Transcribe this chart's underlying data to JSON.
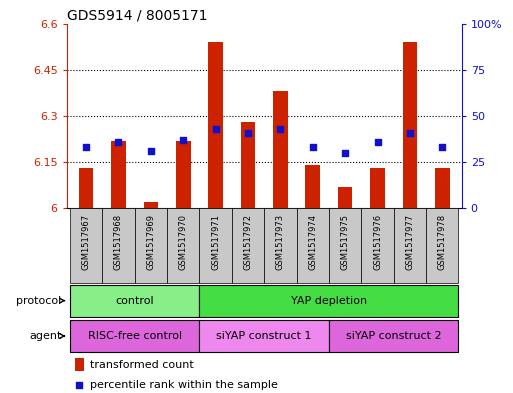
{
  "title": "GDS5914 / 8005171",
  "samples": [
    "GSM1517967",
    "GSM1517968",
    "GSM1517969",
    "GSM1517970",
    "GSM1517971",
    "GSM1517972",
    "GSM1517973",
    "GSM1517974",
    "GSM1517975",
    "GSM1517976",
    "GSM1517977",
    "GSM1517978"
  ],
  "transformed_counts": [
    6.13,
    6.22,
    6.02,
    6.22,
    6.54,
    6.28,
    6.38,
    6.14,
    6.07,
    6.13,
    6.54,
    6.13
  ],
  "percentile_ranks": [
    33,
    36,
    31,
    37,
    43,
    41,
    43,
    33,
    30,
    36,
    41,
    33
  ],
  "ylim_left": [
    6.0,
    6.6
  ],
  "ylim_right": [
    0,
    100
  ],
  "yticks_left": [
    6.0,
    6.15,
    6.3,
    6.45,
    6.6
  ],
  "ytick_labels_left": [
    "6",
    "6.15",
    "6.3",
    "6.45",
    "6.6"
  ],
  "yticks_right": [
    0,
    25,
    50,
    75,
    100
  ],
  "ytick_labels_right": [
    "0",
    "25",
    "50",
    "75",
    "100%"
  ],
  "hlines": [
    6.15,
    6.3,
    6.45
  ],
  "bar_color": "#cc2200",
  "dot_color": "#1111cc",
  "bar_width": 0.45,
  "protocol_groups": [
    {
      "label": "control",
      "start": 0,
      "end": 3,
      "color": "#88ee88"
    },
    {
      "label": "YAP depletion",
      "start": 4,
      "end": 11,
      "color": "#44dd44"
    }
  ],
  "agent_groups": [
    {
      "label": "RISC-free control",
      "start": 0,
      "end": 3,
      "color": "#dd66dd"
    },
    {
      "label": "siYAP construct 1",
      "start": 4,
      "end": 7,
      "color": "#ee88ee"
    },
    {
      "label": "siYAP construct 2",
      "start": 8,
      "end": 11,
      "color": "#dd66dd"
    }
  ],
  "protocol_label": "protocol",
  "agent_label": "agent",
  "legend_bar_label": "transformed count",
  "legend_dot_label": "percentile rank within the sample",
  "plot_bg_color": "#ffffff",
  "xtick_bg_color": "#c8c8c8",
  "left_axis_color": "#cc2200",
  "right_axis_color": "#1111cc",
  "title_fontsize": 10,
  "tick_fontsize": 8,
  "label_fontsize": 8,
  "sample_fontsize": 6
}
